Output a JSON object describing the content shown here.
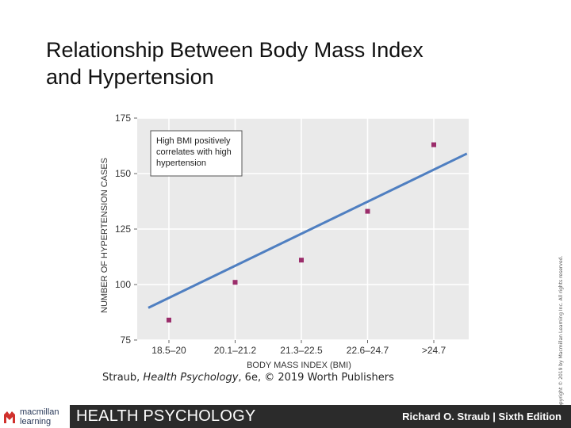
{
  "slide": {
    "title_line1": "Relationship Between Body Mass Index",
    "title_line2": "and Hypertension"
  },
  "chart_data": {
    "type": "scatter",
    "categories": [
      "18.5–20",
      "20.1–21.2",
      "21.3–22.5",
      "22.6–24.7",
      ">24.7"
    ],
    "values": [
      84,
      101,
      111,
      133,
      163
    ],
    "trendline": {
      "start": [
        0,
        89.5
      ],
      "end": [
        4.5,
        159
      ]
    },
    "xlabel": "BODY MASS INDEX (BMI)",
    "ylabel": "NUMBER OF HYPERTENSION CASES",
    "ylim": [
      75,
      175
    ],
    "yticks": [
      75,
      100,
      125,
      150,
      175
    ],
    "grid": true,
    "annotation": [
      "High BMI positively",
      "correlates with high",
      "hypertension"
    ],
    "colors": {
      "points": "#9b2d6b",
      "trendline": "#4f7fc1",
      "plot_bg": "#eaeaea",
      "grid": "#ffffff"
    }
  },
  "credit": {
    "prefix": "Straub, ",
    "book": "Health Psychology",
    "suffix": ", 6e, © 2019 Worth Publishers"
  },
  "copyright": "Copyright © 2019 by Macmillan Learning Inc. All rights reserved.",
  "footer": {
    "logo_line1": "macmillan",
    "logo_line2": "learning",
    "course": "HEALTH PSYCHOLOGY",
    "author": "Richard O. Straub | Sixth Edition"
  }
}
